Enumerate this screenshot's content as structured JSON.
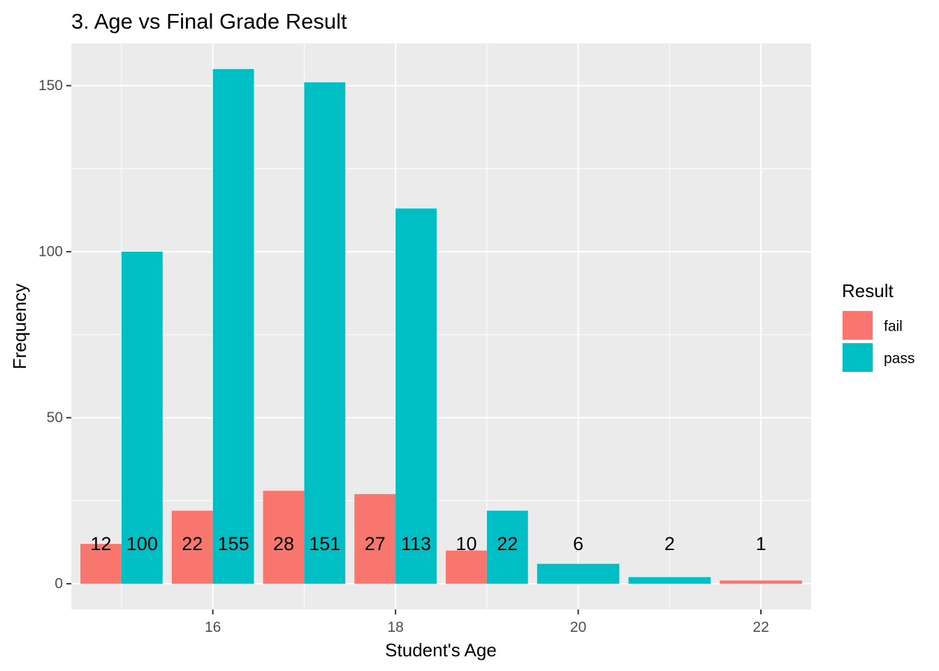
{
  "chart_data": {
    "type": "bar",
    "title": "3. Age vs Final Grade Result",
    "xlabel": "Student's Age",
    "ylabel": "Frequency",
    "xlim": [
      14.45,
      22.55
    ],
    "ylim": [
      -7.75,
      162.75
    ],
    "x_ticks": [
      16,
      18,
      20,
      22
    ],
    "y_ticks": [
      0,
      50,
      100,
      150
    ],
    "grid": true,
    "legend": {
      "title": "Result",
      "position": "right"
    },
    "colors": {
      "fail": "#F8766D",
      "pass": "#00BFC4",
      "panel": "#EBEBEB",
      "grid": "#FFFFFF",
      "tick": "#333333"
    },
    "series": [
      {
        "name": "fail",
        "x": [
          15,
          16,
          17,
          18,
          19,
          22
        ],
        "values": [
          12,
          22,
          28,
          27,
          10,
          1
        ]
      },
      {
        "name": "pass",
        "x": [
          15,
          16,
          17,
          18,
          19,
          20,
          21
        ],
        "values": [
          100,
          155,
          151,
          113,
          22,
          6,
          2
        ]
      }
    ]
  }
}
